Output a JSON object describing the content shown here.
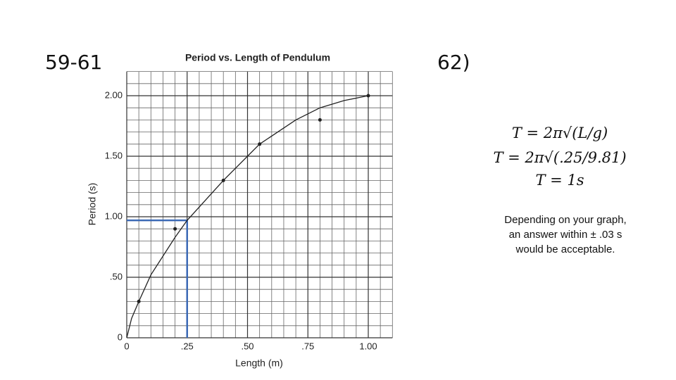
{
  "slide_labels": [
    "59-61",
    "62)"
  ],
  "equations": [
    "T = 2π√(L/g)",
    "T = 2π√(.25/9.81)",
    "T = 1s"
  ],
  "note": "Depending on your graph, an answer within ± .03 s would be acceptable.",
  "chart_data": {
    "type": "scatter",
    "title": "Period vs. Length of Pendulum",
    "x_label": "Length (m)",
    "y_label": "Period (s)",
    "xlim": [
      0,
      1.1
    ],
    "ylim": [
      0,
      2.2
    ],
    "xticks": [
      0,
      {
        "value": 0.25,
        "label": ".25"
      },
      {
        "value": 0.5,
        "label": ".50"
      },
      {
        "value": 0.75,
        "label": ".75"
      },
      {
        "value": 1,
        "label": "1.00"
      }
    ],
    "yticks": [
      0,
      {
        "value": 0.5,
        "label": ".50"
      },
      {
        "value": 1,
        "label": "1.00"
      },
      {
        "value": 1.5,
        "label": "1.50"
      },
      {
        "value": 2,
        "label": "2.00"
      }
    ],
    "minor_xticks": [
      0.05,
      0.1,
      0.15,
      0.2,
      0.3,
      0.35,
      0.4,
      0.45,
      0.55,
      0.6,
      0.65,
      0.7,
      0.8,
      0.85,
      0.9,
      0.95,
      1.05,
      1.1
    ],
    "minor_yticks": [
      0.1,
      0.2,
      0.3,
      0.4,
      0.6,
      0.7,
      0.8,
      0.9,
      1.1,
      1.2,
      1.3,
      1.4,
      1.6,
      1.7,
      1.8,
      1.9,
      2.1,
      2.2
    ],
    "grid": true,
    "points": {
      "color": "#222",
      "x": [
        0.05,
        0.2,
        0.4,
        0.55,
        0.8,
        1.0
      ],
      "values": [
        0.3,
        0.9,
        1.3,
        1.6,
        1.8,
        2.0
      ]
    },
    "curve": {
      "color": "#222",
      "x": [
        0,
        0.02,
        0.05,
        0.1,
        0.2,
        0.25,
        0.4,
        0.55,
        0.7,
        0.8,
        0.9,
        1.0
      ],
      "values": [
        0,
        0.16,
        0.3,
        0.52,
        0.83,
        0.97,
        1.3,
        1.6,
        1.8,
        1.9,
        1.96,
        2.0
      ]
    },
    "guide": {
      "color": "#3b69b5",
      "x": 0.25,
      "y": 0.97
    }
  }
}
